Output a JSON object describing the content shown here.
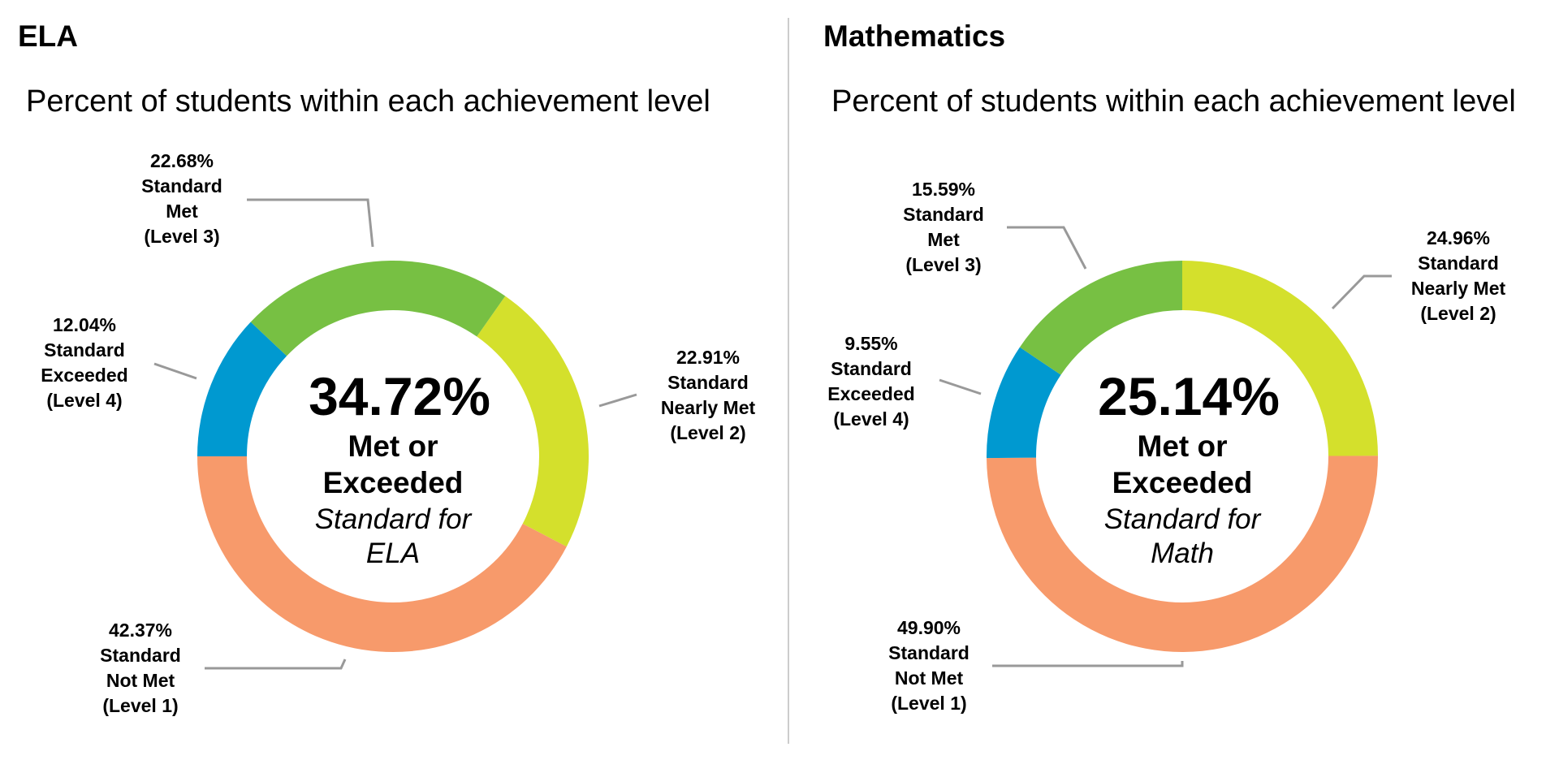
{
  "chart_data": [
    {
      "type": "donut",
      "heading": "ELA",
      "title": "Percent of students within each achievement level",
      "categories": [
        "Standard\nNearly Met\n(Level 2)",
        "Standard\nNot Met\n(Level 1)",
        "Standard\nExceeded\n(Level 4)",
        "Standard\nMet\n(Level 3)"
      ],
      "values": [
        22.91,
        42.37,
        12.04,
        22.68
      ],
      "value_labels": [
        "22.91%",
        "42.37%",
        "12.04%",
        "22.68%"
      ],
      "colors": [
        "#d4e02c",
        "#f79a6b",
        "#0099d0",
        "#77c043"
      ],
      "center_title": "34.72%",
      "center_subtitle": "Met or\nExceeded",
      "center_note": "Standard for\nELA"
    },
    {
      "type": "donut",
      "heading": "Mathematics",
      "title": "Percent of students within each achievement level",
      "categories": [
        "Standard\nNearly Met\n(Level 2)",
        "Standard\nNot Met\n(Level 1)",
        "Standard\nExceeded\n(Level 4)",
        "Standard\nMet\n(Level 3)"
      ],
      "values": [
        24.96,
        49.9,
        9.55,
        15.59
      ],
      "value_labels": [
        "24.96%",
        "49.90%",
        "9.55%",
        "15.59%"
      ],
      "colors": [
        "#d4e02c",
        "#f79a6b",
        "#0099d0",
        "#77c043"
      ],
      "center_title": "25.14%",
      "center_subtitle": "Met or\nExceeded",
      "center_note": "Standard for\nMath"
    }
  ]
}
